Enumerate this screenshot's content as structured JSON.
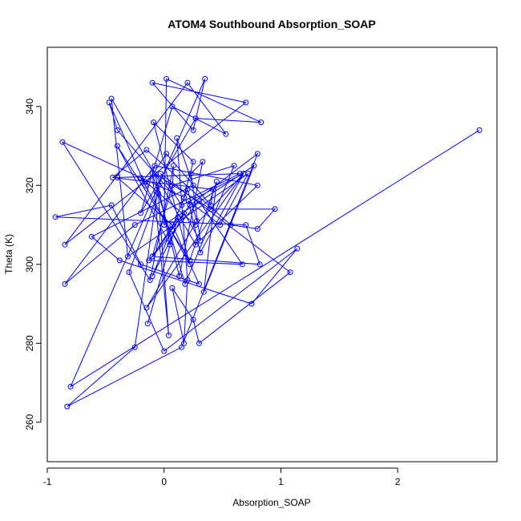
{
  "chart_data": {
    "type": "line",
    "title": "ATOM4 Southbound Absorption_SOAP",
    "xlabel": "Absorption_SOAP",
    "ylabel": "Theta (K)",
    "xlim": [
      -1.0,
      2.85
    ],
    "ylim": [
      250,
      355
    ],
    "xticks": [
      -1,
      0,
      1,
      2
    ],
    "yticks": [
      260,
      280,
      300,
      320,
      340
    ],
    "grid": false,
    "legend": "none",
    "series": [
      {
        "color": "#0000ff",
        "markers": "open-circle",
        "x": [
          2.7,
          -0.8,
          0.35,
          0.25,
          -0.1,
          0.7,
          -0.85,
          0.2,
          0.53,
          0.07,
          -0.2,
          0.27,
          0.83,
          0.02,
          0.0,
          0.77,
          0.34,
          0.45,
          0.22,
          -0.4,
          0.05,
          -0.05,
          -0.25,
          -0.83,
          0.15,
          0.8,
          0.22,
          -0.13,
          0.67,
          0.3,
          -0.1,
          0.07,
          0.6,
          0.18,
          -0.1,
          0.04,
          -0.05,
          -0.3,
          0.0,
          1.14,
          0.75,
          -0.38,
          -0.62,
          0.25,
          0.11,
          0.2,
          0.17,
          0.07,
          0.25,
          0.3,
          1.08,
          -0.03,
          0.15,
          0.68,
          -0.15,
          0.28,
          0.2,
          -0.1,
          0.17,
          0.31,
          0.23,
          0.33,
          0.13,
          -0.08,
          0.4,
          0.95,
          0.8,
          0.57,
          -0.15,
          -0.44,
          0.42,
          0.4,
          0.02,
          -0.16,
          -0.47,
          -0.4,
          0.07,
          0.08,
          -0.12,
          -0.87,
          0.17,
          0.25,
          -0.09,
          0.22,
          -0.2,
          0.27,
          0.68,
          0.31,
          0.21,
          0.48,
          0.72,
          -0.31,
          -0.45,
          0.27,
          0.8,
          -0.08,
          -0.85,
          -0.25,
          0.65,
          -0.4,
          0.07,
          0.3,
          -0.2,
          -0.45,
          -0.93,
          0.7,
          0.82,
          -0.1,
          0.12,
          -0.14
        ],
        "y": [
          334,
          269,
          347,
          334,
          346,
          341,
          305,
          346,
          333,
          340,
          313,
          337,
          336,
          347,
          310,
          325,
          293,
          321,
          301,
          330,
          305,
          320,
          279,
          264,
          279,
          328,
          315,
          301,
          300,
          316,
          302,
          320,
          325,
          295,
          323,
          282,
          318,
          298,
          278,
          304,
          290,
          301,
          307,
          320,
          332,
          296,
          280,
          294,
          286,
          280,
          298,
          323,
          315,
          323,
          289,
          311,
          319,
          297,
          313,
          306,
          323,
          326,
          297,
          323,
          314,
          314,
          309,
          310,
          329,
          322,
          319,
          315,
          328,
          320,
          341,
          334,
          318,
          325,
          296,
          331,
          317,
          326,
          336,
          300,
          322,
          310,
          323,
          303,
          316,
          310,
          323,
          302,
          342,
          305,
          320,
          325,
          295,
          310,
          323,
          322,
          310,
          295,
          300,
          315,
          312,
          310,
          300,
          302,
          312,
          285
        ]
      }
    ]
  }
}
